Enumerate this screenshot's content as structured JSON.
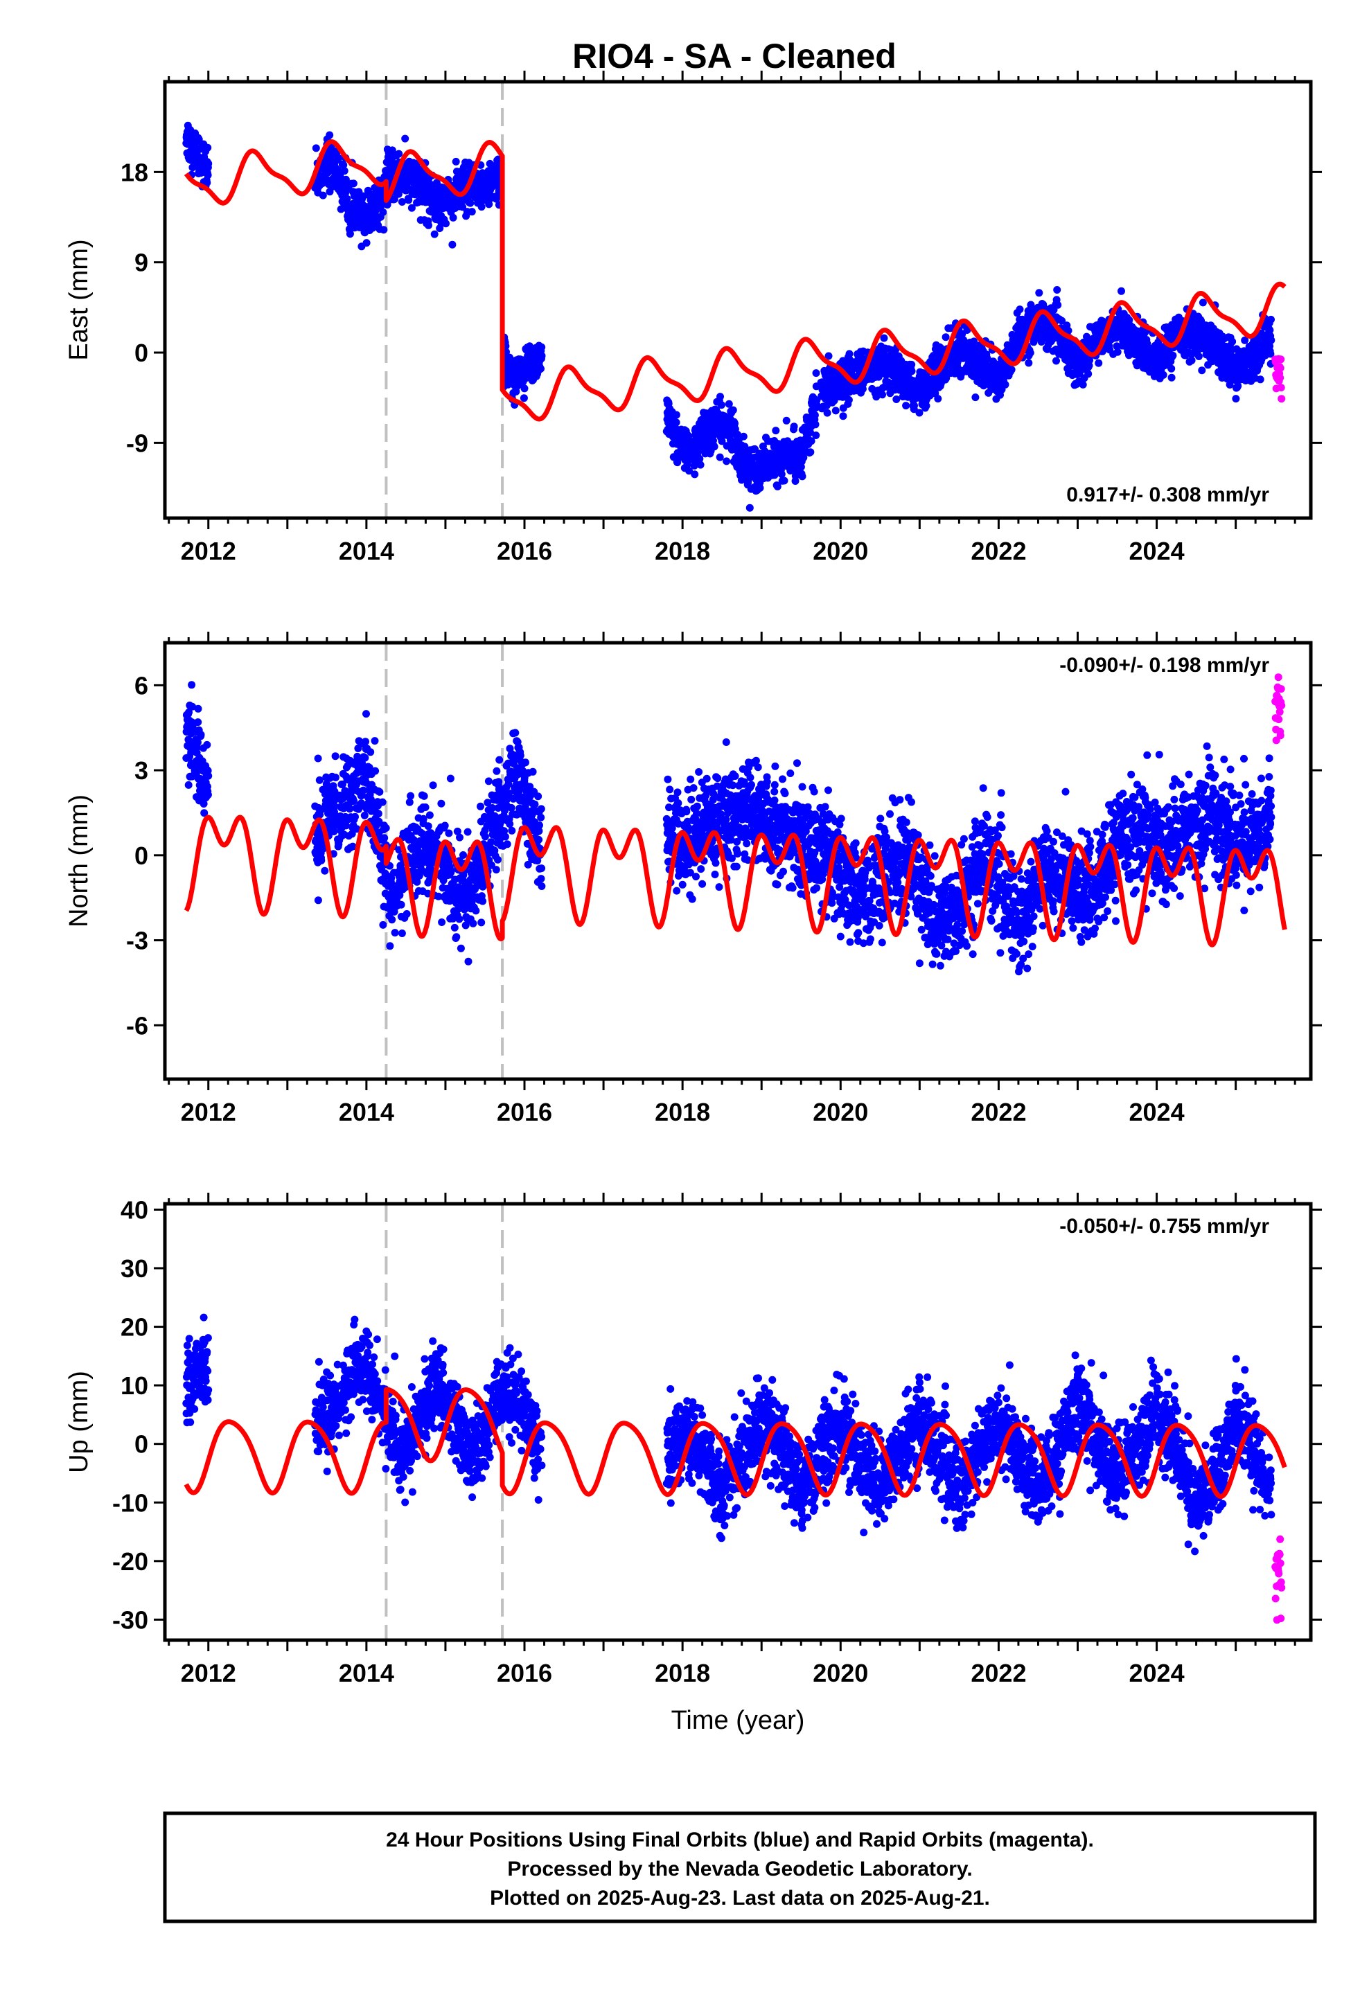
{
  "title": "RIO4  - SA - Cleaned",
  "colors": {
    "final": "#0000ff",
    "rapid": "#ff00ff",
    "model": "#ff0000",
    "event_lines": "#c0c0c0",
    "frame": "#000000"
  },
  "footer": {
    "line1": "24 Hour Positions Using Final Orbits (blue) and Rapid Orbits (magenta).",
    "line2": "Processed by the Nevada Geodetic Laboratory.",
    "line3": "Plotted on 2025-Aug-23. Last data on 2025-Aug-21."
  },
  "chart_data": [
    {
      "type": "scatter",
      "id": "east",
      "ylabel": "East (mm)",
      "xlabel": "",
      "xlim": [
        2011.45,
        2025.95
      ],
      "ylim": [
        -16.5,
        27.0
      ],
      "x_ticks": [
        "2012",
        "2014",
        "2016",
        "2018",
        "2020",
        "2022",
        "2024"
      ],
      "y_ticks": [
        "18",
        "9",
        "0",
        "-9"
      ],
      "rate": "0.917+/- 0.308 mm/yr",
      "rate_position": "bottom-right",
      "event_lines": [
        2014.25,
        2015.72
      ],
      "data_segments": [
        {
          "x": [
            2011.72,
            2011.75,
            2011.8,
            2011.85,
            2011.9,
            2011.95,
            2012.0
          ],
          "y": [
            22.0,
            21.0,
            20.5,
            20.0,
            19.5,
            18.5,
            17.5
          ],
          "spread": 2.0
        },
        {
          "x": [
            2013.35,
            2013.5,
            2013.6,
            2013.7,
            2013.8,
            2013.9,
            2014.0,
            2014.1,
            2014.2,
            2014.3,
            2014.45,
            2014.6,
            2014.75,
            2014.9,
            2015.05,
            2015.2,
            2015.4,
            2015.6,
            2015.7
          ],
          "y": [
            17.0,
            19.0,
            18.5,
            16.5,
            14.5,
            13.5,
            13.5,
            14.5,
            16.0,
            17.5,
            17.5,
            17.0,
            16.0,
            15.0,
            15.5,
            16.0,
            16.5,
            17.0,
            17.0
          ],
          "spread": 2.2
        },
        {
          "x": [
            2015.74,
            2015.8,
            2015.9,
            2016.0,
            2016.1,
            2016.22
          ],
          "y": [
            -0.5,
            -1.5,
            -2.0,
            -1.8,
            -1.0,
            0.0
          ],
          "spread": 1.8
        },
        {
          "x": [
            2017.8,
            2017.95,
            2018.1,
            2018.3,
            2018.5,
            2018.65,
            2018.75,
            2018.9,
            2019.1,
            2019.3,
            2019.5,
            2019.7
          ],
          "y": [
            -6.5,
            -9.0,
            -10.0,
            -8.0,
            -7.0,
            -8.0,
            -11.0,
            -11.5,
            -11.0,
            -10.5,
            -10.0,
            -5.0
          ],
          "spread": 2.0
        },
        {
          "x": [
            2019.75,
            2020.0,
            2020.25,
            2020.5,
            2020.75,
            2021.0,
            2021.25,
            2021.5,
            2021.75,
            2022.0,
            2022.25,
            2022.5,
            2022.75,
            2023.0,
            2023.25,
            2023.5,
            2023.75,
            2024.0,
            2024.25,
            2024.5,
            2024.75,
            2025.0,
            2025.25,
            2025.45
          ],
          "y": [
            -4.0,
            -3.0,
            -2.0,
            -1.5,
            -2.5,
            -4.0,
            -1.5,
            0.5,
            -1.0,
            -3.0,
            1.5,
            3.0,
            2.0,
            -1.5,
            1.0,
            2.5,
            1.0,
            -1.0,
            1.5,
            2.0,
            0.5,
            -2.0,
            0.0,
            1.5
          ],
          "spread": 2.0
        }
      ],
      "rapid": {
        "x": [
          2025.5,
          2025.58
        ],
        "y": [
          -2.0,
          -2.0
        ],
        "spread": 2.0
      },
      "model_segments": [
        {
          "offset": 18.9,
          "rate": 0.917,
          "t0": 2014.0,
          "amp": 2.1,
          "phase": 4.0,
          "amp2": 0.7,
          "phase2": 1.5,
          "xs": [
            2011.72,
            2014.25
          ]
        },
        {
          "offset": 17.0,
          "rate": 0.917,
          "t0": 2014.0,
          "amp": 2.1,
          "phase": 4.0,
          "amp2": 0.7,
          "phase2": 1.5,
          "xs": [
            2014.25,
            2015.72
          ]
        },
        {
          "offset": -6.3,
          "rate": 0.917,
          "t0": 2014.0,
          "amp": 2.1,
          "phase": 4.0,
          "amp2": 0.7,
          "phase2": 1.5,
          "xs": [
            2015.72,
            2025.62
          ]
        }
      ]
    },
    {
      "type": "scatter",
      "id": "north",
      "ylabel": "North (mm)",
      "xlabel": "",
      "xlim": [
        2011.45,
        2025.95
      ],
      "ylim": [
        -7.9,
        7.5
      ],
      "x_ticks": [
        "2012",
        "2014",
        "2016",
        "2018",
        "2020",
        "2022",
        "2024"
      ],
      "y_ticks": [
        "6",
        "3",
        "0",
        "-3",
        "-6"
      ],
      "rate": "-0.090+/- 0.198 mm/yr",
      "rate_position": "top-right",
      "event_lines": [
        2014.25,
        2015.72
      ],
      "data_segments": [
        {
          "x": [
            2011.72,
            2011.8,
            2011.9,
            2012.0
          ],
          "y": [
            4.5,
            4.0,
            3.0,
            2.5
          ],
          "spread": 1.3
        },
        {
          "x": [
            2013.35,
            2013.55,
            2013.75,
            2013.95,
            2014.1,
            2014.3,
            2014.5,
            2014.7,
            2014.9,
            2015.1,
            2015.3,
            2015.5,
            2015.7,
            2015.9,
            2016.1,
            2016.22
          ],
          "y": [
            0.5,
            1.5,
            2.0,
            3.0,
            1.5,
            -1.5,
            -0.5,
            0.5,
            0.0,
            -1.0,
            -1.5,
            0.0,
            1.5,
            3.0,
            1.0,
            0.0
          ],
          "spread": 1.5
        },
        {
          "x": [
            2017.8,
            2018.0,
            2018.3,
            2018.6,
            2018.9,
            2019.2,
            2019.5,
            2019.8,
            2020.0,
            2020.3,
            2020.6,
            2020.9,
            2021.2,
            2021.5,
            2021.8,
            2022.0,
            2022.3,
            2022.6,
            2022.9,
            2023.2,
            2023.5,
            2023.8,
            2024.1,
            2024.4,
            2024.7,
            2025.0,
            2025.3,
            2025.45
          ],
          "y": [
            0.5,
            0.5,
            1.0,
            1.5,
            1.5,
            1.0,
            0.5,
            0.0,
            -1.0,
            -1.5,
            -0.5,
            0.0,
            -2.5,
            -2.0,
            0.0,
            -1.0,
            -2.5,
            -0.5,
            -1.0,
            -1.5,
            0.5,
            1.0,
            0.0,
            1.0,
            1.5,
            0.5,
            0.5,
            2.0
          ],
          "spread": 1.6
        }
      ],
      "rapid": {
        "x": [
          2025.5,
          2025.58
        ],
        "y": [
          5.0,
          5.0
        ],
        "spread": 1.2
      },
      "model_segments": [
        {
          "offset": 0.0,
          "rate": -0.09,
          "t0": 2014.0,
          "amp": 1.2,
          "phase": 0.3,
          "amp2": 1.0,
          "phase2": 2.2,
          "xs": [
            2011.72,
            2014.25
          ]
        },
        {
          "offset": -0.6,
          "rate": -0.09,
          "t0": 2014.0,
          "amp": 1.2,
          "phase": 0.3,
          "amp2": 1.0,
          "phase2": 2.2,
          "xs": [
            2014.25,
            2015.72
          ]
        },
        {
          "offset": 0.0,
          "rate": -0.09,
          "t0": 2014.0,
          "amp": 1.2,
          "phase": 0.3,
          "amp2": 1.0,
          "phase2": 2.2,
          "xs": [
            2015.72,
            2025.62
          ]
        }
      ]
    },
    {
      "type": "scatter",
      "id": "up",
      "ylabel": "Up (mm)",
      "xlabel": "Time (year)",
      "xlim": [
        2011.45,
        2025.95
      ],
      "ylim": [
        -33.5,
        41.0
      ],
      "x_ticks": [
        "2012",
        "2014",
        "2016",
        "2018",
        "2020",
        "2022",
        "2024"
      ],
      "y_ticks": [
        "40",
        "30",
        "20",
        "10",
        "0",
        "-10",
        "-20",
        "-30"
      ],
      "rate": "-0.050+/- 0.755 mm/yr",
      "rate_position": "top-right",
      "event_lines": [
        2014.25,
        2015.72
      ],
      "data_segments": [
        {
          "x": [
            2011.72,
            2011.8,
            2011.9,
            2012.0
          ],
          "y": [
            10.0,
            12.0,
            13.0,
            12.0
          ],
          "spread": 5.5
        },
        {
          "x": [
            2013.35,
            2013.55,
            2013.75,
            2013.95,
            2014.1,
            2014.3,
            2014.5,
            2014.7,
            2014.9,
            2015.1,
            2015.3,
            2015.5,
            2015.7,
            2015.9,
            2016.1,
            2016.22
          ],
          "y": [
            3.0,
            5.0,
            10.0,
            14.0,
            10.0,
            2.0,
            -2.0,
            5.0,
            10.0,
            5.0,
            -2.0,
            0.0,
            10.0,
            8.0,
            2.0,
            -2.0
          ],
          "spread": 6.0
        },
        {
          "x": [
            2017.8,
            2018.0,
            2018.25,
            2018.5,
            2018.75,
            2019.0,
            2019.25,
            2019.5,
            2019.75,
            2020.0,
            2020.25,
            2020.5,
            2020.75,
            2021.0,
            2021.25,
            2021.5,
            2021.75,
            2022.0,
            2022.25,
            2022.5,
            2022.75,
            2023.0,
            2023.25,
            2023.5,
            2023.75,
            2024.0,
            2024.25,
            2024.5,
            2024.75,
            2025.0,
            2025.25,
            2025.45
          ],
          "y": [
            -2.0,
            2.0,
            -2.0,
            -8.0,
            -2.0,
            4.0,
            -2.0,
            -8.0,
            -2.0,
            3.0,
            -2.0,
            -8.0,
            -2.0,
            4.0,
            -2.0,
            -8.0,
            -2.0,
            4.0,
            -2.0,
            -8.0,
            -2.0,
            8.0,
            0.0,
            -6.0,
            0.0,
            6.0,
            0.0,
            -12.0,
            -4.0,
            4.0,
            -2.0,
            -8.0
          ],
          "spread": 6.5
        }
      ],
      "rapid": {
        "x": [
          2025.5,
          2025.58
        ],
        "y": [
          -22.0,
          -22.0
        ],
        "spread": 6.0
      },
      "model_segments": [
        {
          "offset": -1.6,
          "rate": -0.05,
          "t0": 2014.0,
          "amp": 6.0,
          "phase": -0.3,
          "amp2": 0.9,
          "phase2": 0.5,
          "xs": [
            2011.72,
            2014.25
          ]
        },
        {
          "offset": 4.0,
          "rate": -0.05,
          "t0": 2014.0,
          "amp": 6.0,
          "phase": -0.3,
          "amp2": 0.9,
          "phase2": 0.5,
          "xs": [
            2014.25,
            2015.72
          ]
        },
        {
          "offset": -1.6,
          "rate": -0.05,
          "t0": 2014.0,
          "amp": 6.0,
          "phase": -0.3,
          "amp2": 0.9,
          "phase2": 0.5,
          "xs": [
            2015.72,
            2025.62
          ]
        }
      ]
    }
  ]
}
